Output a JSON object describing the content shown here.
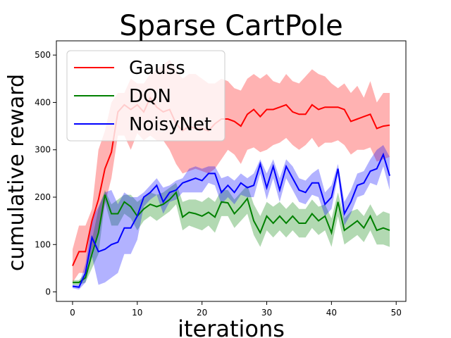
{
  "chart_data": {
    "type": "line",
    "title": "Sparse CartPole",
    "xlabel": "iterations",
    "ylabel": "cumulative reward",
    "xlim": [
      -2.5,
      51.5
    ],
    "ylim": [
      -20,
      530
    ],
    "xticks": [
      0,
      10,
      20,
      30,
      40,
      50
    ],
    "yticks": [
      0,
      100,
      200,
      300,
      400,
      500
    ],
    "grid": false,
    "legend_position": "top-left",
    "series": [
      {
        "name": "Gauss",
        "color": "#ff0000",
        "band_color": "#ff0000",
        "mean": [
          55,
          85,
          85,
          150,
          195,
          260,
          295,
          380,
          395,
          385,
          395,
          380,
          410,
          390,
          380,
          385,
          355,
          340,
          350,
          345,
          345,
          340,
          355,
          365,
          365,
          360,
          350,
          375,
          385,
          370,
          385,
          385,
          390,
          395,
          380,
          375,
          375,
          395,
          385,
          390,
          390,
          390,
          385,
          360,
          365,
          370,
          375,
          345,
          350,
          352
        ],
        "upper": [
          90,
          140,
          140,
          175,
          300,
          340,
          400,
          420,
          420,
          450,
          440,
          440,
          460,
          470,
          480,
          490,
          470,
          450,
          460,
          460,
          450,
          440,
          440,
          450,
          445,
          430,
          425,
          450,
          460,
          450,
          460,
          445,
          440,
          460,
          445,
          440,
          455,
          470,
          460,
          455,
          440,
          430,
          440,
          420,
          435,
          410,
          445,
          400,
          420,
          420
        ],
        "lower": [
          20,
          40,
          40,
          90,
          120,
          185,
          240,
          330,
          330,
          300,
          335,
          320,
          330,
          320,
          320,
          300,
          270,
          250,
          255,
          260,
          255,
          250,
          260,
          280,
          300,
          290,
          270,
          300,
          305,
          295,
          300,
          310,
          315,
          325,
          310,
          300,
          310,
          325,
          305,
          315,
          315,
          320,
          310,
          290,
          300,
          300,
          305,
          275,
          280,
          285
        ]
      },
      {
        "name": "DQN",
        "color": "#008000",
        "band_color": "#008000",
        "mean": [
          20,
          20,
          30,
          80,
          125,
          205,
          165,
          165,
          190,
          180,
          160,
          175,
          185,
          180,
          185,
          195,
          210,
          158,
          168,
          165,
          160,
          168,
          158,
          190,
          188,
          165,
          180,
          197,
          150,
          125,
          160,
          145,
          160,
          145,
          160,
          145,
          145,
          165,
          150,
          160,
          125,
          190,
          130,
          140,
          150,
          135,
          160,
          130,
          135,
          130
        ],
        "upper": [
          25,
          25,
          40,
          110,
          175,
          215,
          185,
          195,
          205,
          205,
          190,
          200,
          210,
          205,
          210,
          220,
          230,
          190,
          195,
          195,
          190,
          200,
          190,
          215,
          215,
          195,
          210,
          225,
          185,
          160,
          190,
          180,
          190,
          175,
          190,
          175,
          175,
          195,
          180,
          185,
          155,
          210,
          155,
          170,
          175,
          160,
          185,
          160,
          170,
          165
        ],
        "lower": [
          15,
          15,
          20,
          50,
          80,
          190,
          140,
          140,
          165,
          155,
          130,
          150,
          160,
          150,
          160,
          170,
          185,
          130,
          140,
          135,
          130,
          140,
          125,
          160,
          160,
          135,
          150,
          165,
          120,
          95,
          130,
          115,
          130,
          115,
          130,
          115,
          115,
          135,
          120,
          130,
          95,
          160,
          100,
          110,
          120,
          105,
          130,
          100,
          100,
          95
        ]
      },
      {
        "name": "NoisyNet",
        "color": "#0000ff",
        "band_color": "#0000ff",
        "mean": [
          12,
          10,
          40,
          115,
          85,
          90,
          100,
          105,
          135,
          135,
          160,
          200,
          210,
          225,
          190,
          210,
          215,
          230,
          235,
          240,
          235,
          250,
          250,
          210,
          225,
          210,
          230,
          220,
          225,
          270,
          220,
          265,
          215,
          265,
          240,
          215,
          210,
          230,
          230,
          185,
          200,
          260,
          165,
          190,
          225,
          230,
          255,
          260,
          290,
          245
        ],
        "upper": [
          15,
          15,
          60,
          155,
          180,
          210,
          215,
          185,
          210,
          200,
          200,
          210,
          225,
          240,
          220,
          225,
          235,
          240,
          260,
          265,
          260,
          265,
          265,
          240,
          245,
          235,
          250,
          240,
          250,
          280,
          250,
          280,
          240,
          280,
          265,
          240,
          235,
          250,
          260,
          210,
          225,
          270,
          190,
          215,
          250,
          255,
          280,
          300,
          310,
          285
        ],
        "lower": [
          8,
          5,
          20,
          75,
          15,
          20,
          30,
          40,
          80,
          80,
          110,
          180,
          195,
          205,
          165,
          190,
          195,
          210,
          210,
          210,
          210,
          230,
          225,
          185,
          200,
          185,
          205,
          200,
          200,
          250,
          195,
          240,
          190,
          240,
          215,
          190,
          185,
          205,
          200,
          160,
          175,
          245,
          140,
          165,
          200,
          205,
          230,
          225,
          265,
          215
        ]
      }
    ]
  }
}
